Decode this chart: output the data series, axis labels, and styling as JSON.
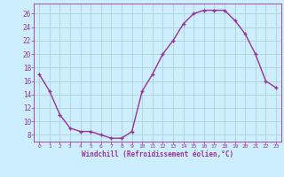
{
  "x": [
    0,
    1,
    2,
    3,
    4,
    5,
    6,
    7,
    8,
    9,
    10,
    11,
    12,
    13,
    14,
    15,
    16,
    17,
    18,
    19,
    20,
    21,
    22,
    23
  ],
  "y": [
    17,
    14.5,
    11,
    9,
    8.5,
    8.5,
    8,
    7.5,
    7.5,
    8.5,
    14.5,
    17,
    20,
    22,
    24.5,
    26,
    26.5,
    26.5,
    26.5,
    25,
    23,
    20,
    16,
    15
  ],
  "line_color": "#993399",
  "marker": "+",
  "marker_size": 3,
  "linewidth": 1.0,
  "background_color": "#cceeff",
  "grid_color": "#aacccc",
  "xlabel": "Windchill (Refroidissement éolien,°C)",
  "xlabel_color": "#993399",
  "tick_color": "#993399",
  "xlim": [
    -0.5,
    23.5
  ],
  "ylim": [
    7,
    27.5
  ],
  "yticks": [
    8,
    10,
    12,
    14,
    16,
    18,
    20,
    22,
    24,
    26
  ],
  "xticks": [
    0,
    1,
    2,
    3,
    4,
    5,
    6,
    7,
    8,
    9,
    10,
    11,
    12,
    13,
    14,
    15,
    16,
    17,
    18,
    19,
    20,
    21,
    22,
    23
  ]
}
